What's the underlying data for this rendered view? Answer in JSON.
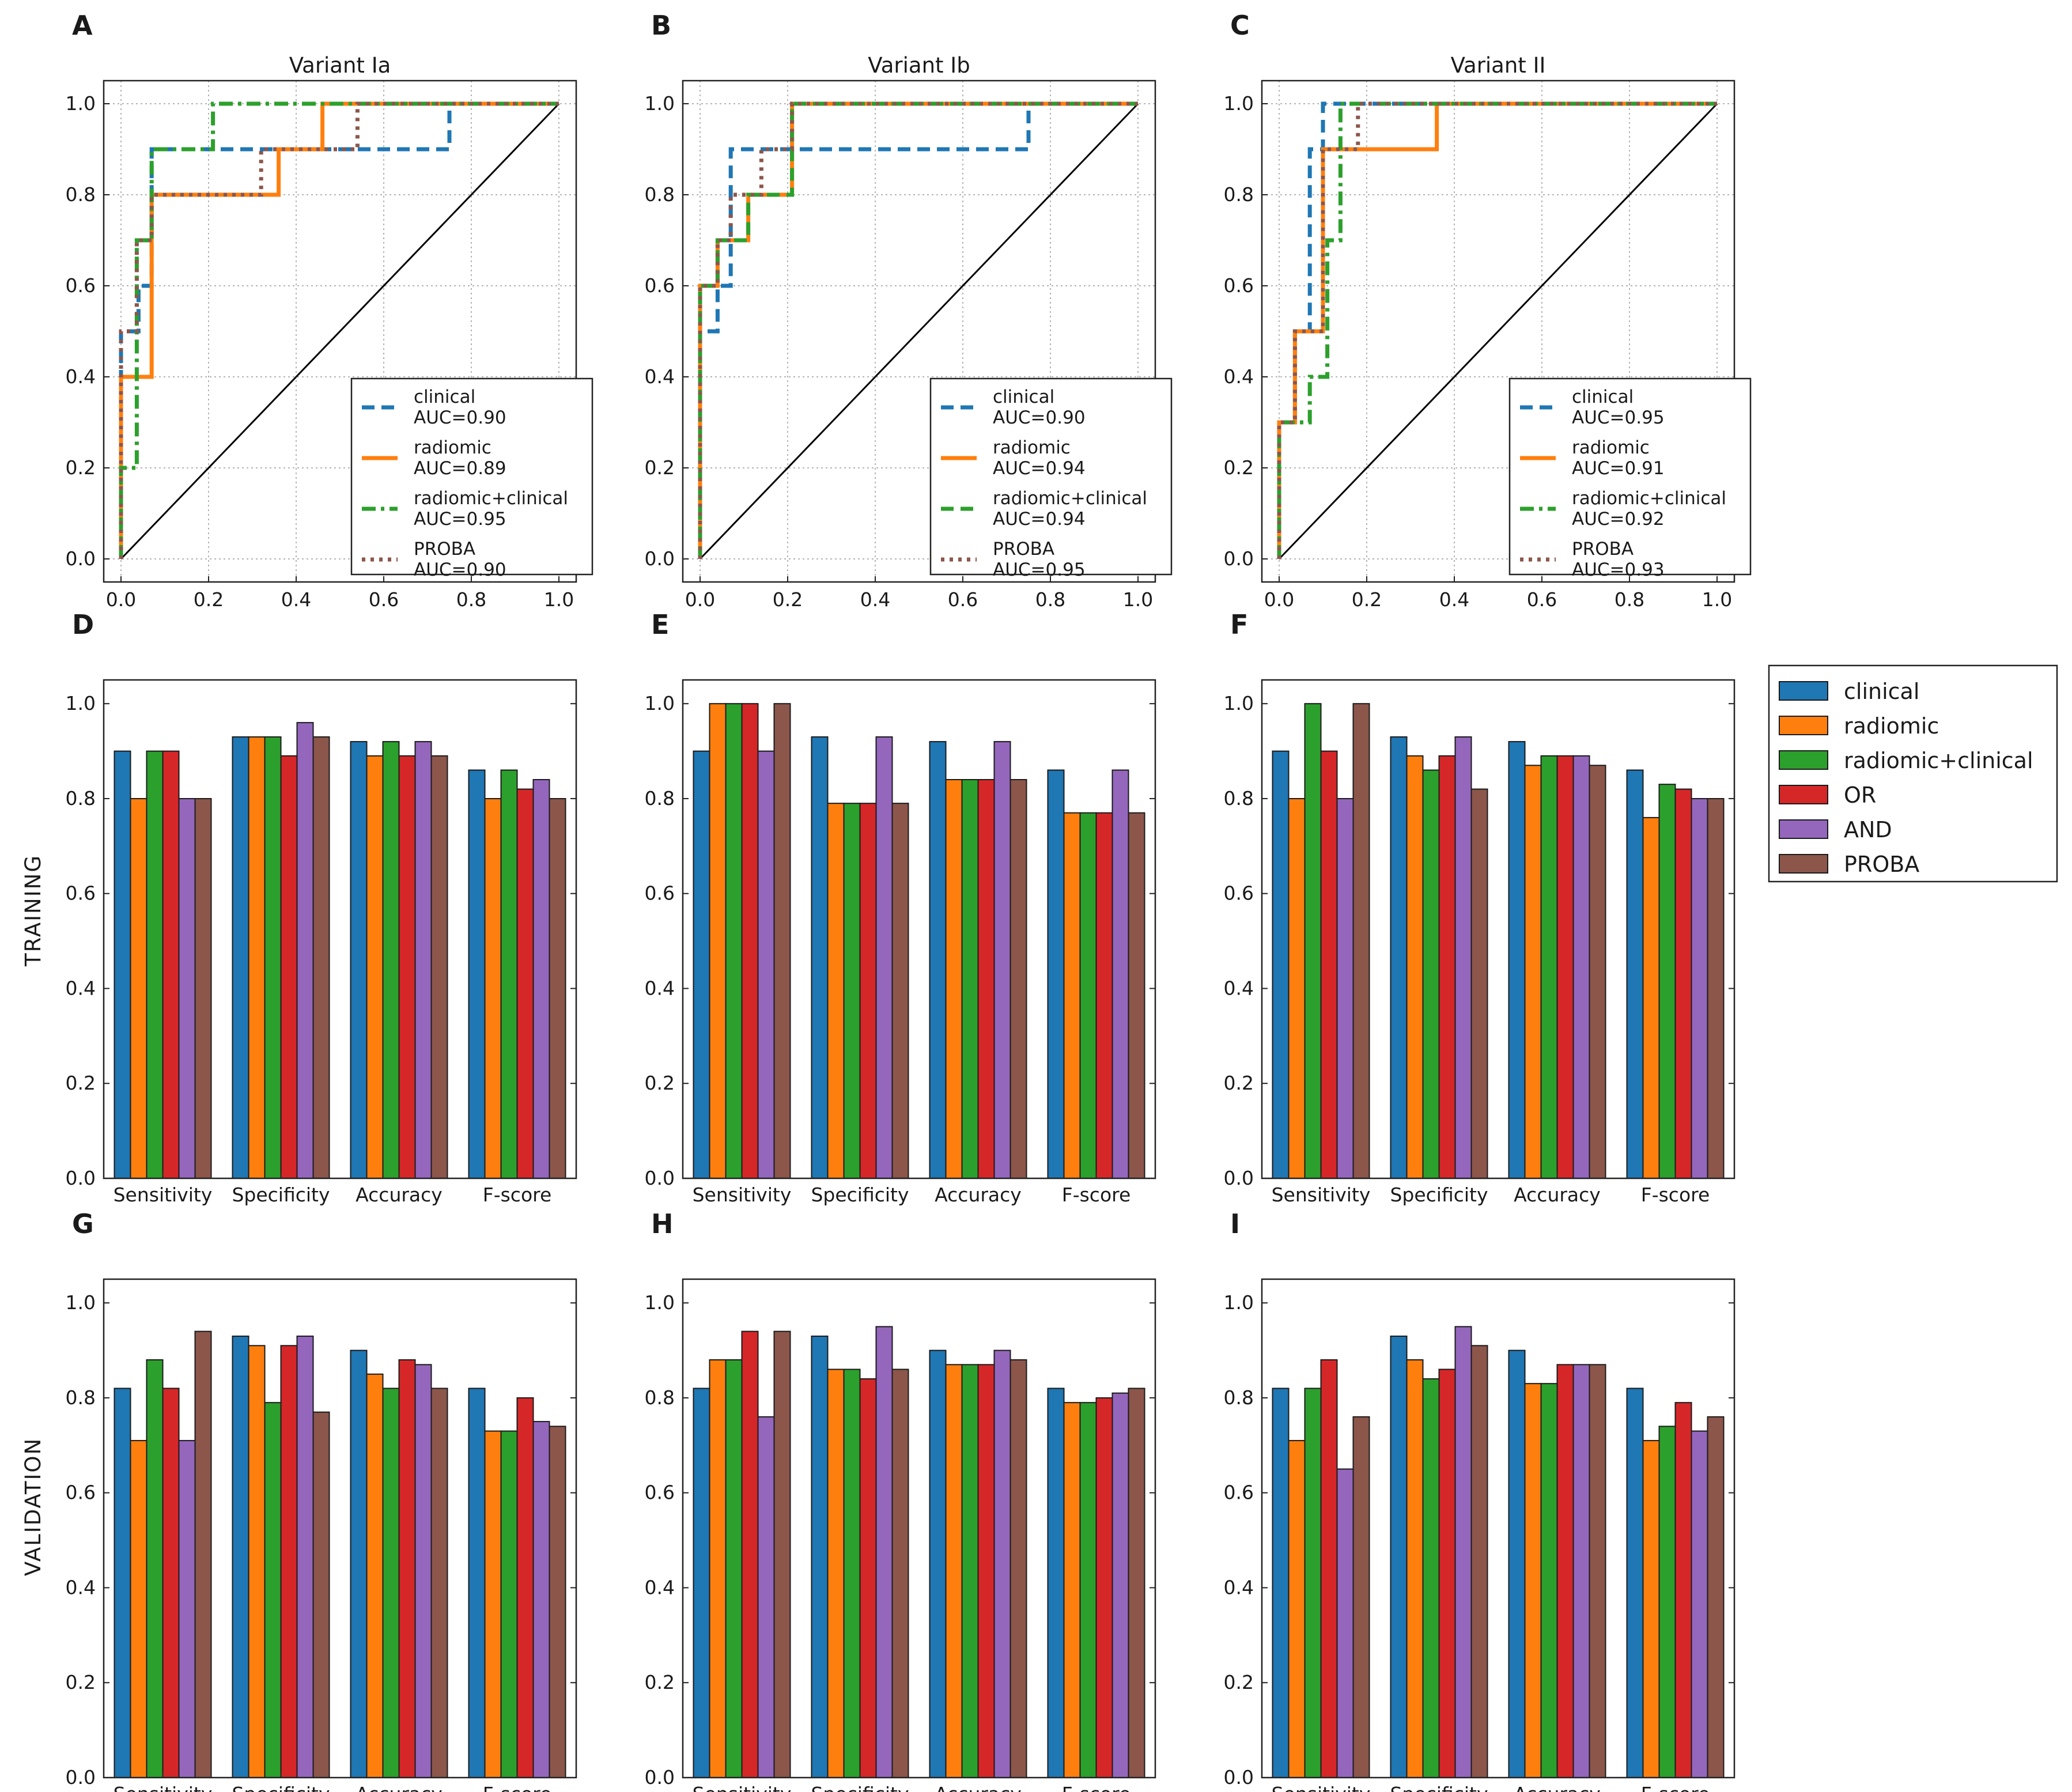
{
  "colors": {
    "clinical": "#1f77b4",
    "radiomic": "#ff7f0e",
    "radiomic+clinical": "#2ca02c",
    "OR": "#d62728",
    "AND": "#9467bd",
    "PROBA": "#8c564b",
    "chance": "#000000"
  },
  "row_labels": {
    "training": "TRAINING",
    "validation": "VALIDATION"
  },
  "bar_legend": [
    "clinical",
    "radiomic",
    "radiomic+clinical",
    "OR",
    "AND",
    "PROBA"
  ],
  "chart_data": [
    {
      "panel": "A",
      "type": "line",
      "title": "Variant Ia",
      "xlabel": "",
      "ylabel": "",
      "xlim": [
        0,
        1
      ],
      "ylim": [
        0,
        1
      ],
      "grid": true,
      "ticks": [
        "0.0",
        "0.2",
        "0.4",
        "0.6",
        "0.8",
        "1.0"
      ],
      "legend_position": "lower-right",
      "series": [
        {
          "name": "clinical",
          "label": "clinical",
          "auc_label": "AUC=0.90",
          "style": "dashed",
          "x": [
            0,
            0,
            0.04,
            0.04,
            0.07,
            0.07,
            0.75,
            0.75,
            1
          ],
          "y": [
            0,
            0.5,
            0.5,
            0.6,
            0.6,
            0.9,
            0.9,
            1,
            1
          ]
        },
        {
          "name": "radiomic",
          "label": "radiomic",
          "auc_label": "AUC=0.89",
          "style": "solid",
          "x": [
            0,
            0,
            0.07,
            0.07,
            0.36,
            0.36,
            0.46,
            0.46,
            1
          ],
          "y": [
            0,
            0.4,
            0.4,
            0.8,
            0.8,
            0.9,
            0.9,
            1,
            1
          ]
        },
        {
          "name": "radiomic+clinical",
          "label": "radiomic+clinical",
          "auc_label": "AUC=0.95",
          "style": "dashdot",
          "x": [
            0,
            0,
            0.036,
            0.036,
            0.07,
            0.07,
            0.21,
            0.21,
            1
          ],
          "y": [
            0,
            0.2,
            0.2,
            0.7,
            0.7,
            0.9,
            0.9,
            1,
            1
          ]
        },
        {
          "name": "PROBA",
          "label": "PROBA",
          "auc_label": "AUC=0.90",
          "style": "dotted",
          "x": [
            0,
            0,
            0.036,
            0.036,
            0.07,
            0.07,
            0.32,
            0.32,
            0.54,
            0.54,
            1
          ],
          "y": [
            0,
            0.5,
            0.5,
            0.7,
            0.7,
            0.8,
            0.8,
            0.9,
            0.9,
            1,
            1
          ]
        }
      ]
    },
    {
      "panel": "B",
      "type": "line",
      "title": "Variant Ib",
      "xlabel": "",
      "ylabel": "",
      "xlim": [
        0,
        1
      ],
      "ylim": [
        0,
        1
      ],
      "grid": true,
      "ticks": [
        "0.0",
        "0.2",
        "0.4",
        "0.6",
        "0.8",
        "1.0"
      ],
      "legend_position": "lower-right",
      "series": [
        {
          "name": "clinical",
          "label": "clinical",
          "auc_label": "AUC=0.90",
          "style": "dashed",
          "x": [
            0,
            0,
            0.04,
            0.04,
            0.07,
            0.07,
            0.75,
            0.75,
            1
          ],
          "y": [
            0,
            0.5,
            0.5,
            0.6,
            0.6,
            0.9,
            0.9,
            1,
            1
          ]
        },
        {
          "name": "radiomic",
          "label": "radiomic",
          "auc_label": "AUC=0.94",
          "style": "solid",
          "x": [
            0,
            0,
            0.04,
            0.04,
            0.11,
            0.11,
            0.21,
            0.21,
            1
          ],
          "y": [
            0,
            0.6,
            0.6,
            0.7,
            0.7,
            0.8,
            0.8,
            1,
            1
          ]
        },
        {
          "name": "radiomic+clinical",
          "label": "radiomic+clinical",
          "auc_label": "AUC=0.94",
          "style": "dashed",
          "x": [
            0,
            0,
            0.04,
            0.04,
            0.11,
            0.11,
            0.21,
            0.21,
            1
          ],
          "y": [
            0,
            0.6,
            0.6,
            0.7,
            0.7,
            0.8,
            0.8,
            1,
            1
          ]
        },
        {
          "name": "PROBA",
          "label": "PROBA",
          "auc_label": "AUC=0.95",
          "style": "dotted",
          "x": [
            0,
            0,
            0.04,
            0.04,
            0.07,
            0.07,
            0.14,
            0.14,
            0.21,
            0.21,
            1
          ],
          "y": [
            0,
            0.6,
            0.6,
            0.7,
            0.7,
            0.8,
            0.8,
            0.9,
            0.9,
            1,
            1
          ]
        }
      ]
    },
    {
      "panel": "C",
      "type": "line",
      "title": "Variant II",
      "xlabel": "",
      "ylabel": "",
      "xlim": [
        0,
        1
      ],
      "ylim": [
        0,
        1
      ],
      "grid": true,
      "ticks": [
        "0.0",
        "0.2",
        "0.4",
        "0.6",
        "0.8",
        "1.0"
      ],
      "legend_position": "lower-right",
      "series": [
        {
          "name": "clinical",
          "label": "clinical",
          "auc_label": "AUC=0.95",
          "style": "dashed",
          "x": [
            0,
            0,
            0.036,
            0.036,
            0.07,
            0.07,
            0.1,
            0.1,
            0.18,
            0.18,
            1
          ],
          "y": [
            0,
            0.3,
            0.3,
            0.5,
            0.5,
            0.9,
            0.9,
            1,
            1,
            1,
            1
          ]
        },
        {
          "name": "radiomic",
          "label": "radiomic",
          "auc_label": "AUC=0.91",
          "style": "solid",
          "x": [
            0,
            0,
            0.036,
            0.036,
            0.1,
            0.1,
            0.36,
            0.36,
            1
          ],
          "y": [
            0,
            0.3,
            0.3,
            0.5,
            0.5,
            0.9,
            0.9,
            1,
            1
          ]
        },
        {
          "name": "radiomic+clinical",
          "label": "radiomic+clinical",
          "auc_label": "AUC=0.92",
          "style": "dashdot",
          "x": [
            0,
            0,
            0.07,
            0.07,
            0.11,
            0.11,
            0.14,
            0.14,
            1
          ],
          "y": [
            0,
            0.3,
            0.3,
            0.4,
            0.4,
            0.7,
            0.7,
            1,
            1
          ]
        },
        {
          "name": "PROBA",
          "label": "PROBA",
          "auc_label": "AUC=0.93",
          "style": "dotted",
          "x": [
            0,
            0,
            0.036,
            0.036,
            0.1,
            0.1,
            0.18,
            0.18,
            1
          ],
          "y": [
            0,
            0.3,
            0.3,
            0.5,
            0.5,
            0.9,
            0.9,
            1,
            1
          ]
        }
      ]
    },
    {
      "panel": "D",
      "type": "bar",
      "row": "training",
      "title": "",
      "ylim": [
        0,
        1.05
      ],
      "grid": false,
      "yticks": [
        "0.0",
        "0.2",
        "0.4",
        "0.6",
        "0.8",
        "1.0"
      ],
      "categories": [
        "Sensitivity",
        "Specificity",
        "Accuracy",
        "F-score"
      ],
      "series": [
        {
          "name": "clinical",
          "values": [
            0.9,
            0.93,
            0.92,
            0.86
          ]
        },
        {
          "name": "radiomic",
          "values": [
            0.8,
            0.93,
            0.89,
            0.8
          ]
        },
        {
          "name": "radiomic+clinical",
          "values": [
            0.9,
            0.93,
            0.92,
            0.86
          ]
        },
        {
          "name": "OR",
          "values": [
            0.9,
            0.89,
            0.89,
            0.82
          ]
        },
        {
          "name": "AND",
          "values": [
            0.8,
            0.96,
            0.92,
            0.84
          ]
        },
        {
          "name": "PROBA",
          "values": [
            0.8,
            0.93,
            0.89,
            0.8
          ]
        }
      ]
    },
    {
      "panel": "E",
      "type": "bar",
      "row": "training",
      "title": "",
      "ylim": [
        0,
        1.05
      ],
      "grid": false,
      "yticks": [
        "0.0",
        "0.2",
        "0.4",
        "0.6",
        "0.8",
        "1.0"
      ],
      "categories": [
        "Sensitivity",
        "Specificity",
        "Accuracy",
        "F-score"
      ],
      "series": [
        {
          "name": "clinical",
          "values": [
            0.9,
            0.93,
            0.92,
            0.86
          ]
        },
        {
          "name": "radiomic",
          "values": [
            1.0,
            0.79,
            0.84,
            0.77
          ]
        },
        {
          "name": "radiomic+clinical",
          "values": [
            1.0,
            0.79,
            0.84,
            0.77
          ]
        },
        {
          "name": "OR",
          "values": [
            1.0,
            0.79,
            0.84,
            0.77
          ]
        },
        {
          "name": "AND",
          "values": [
            0.9,
            0.93,
            0.92,
            0.86
          ]
        },
        {
          "name": "PROBA",
          "values": [
            1.0,
            0.79,
            0.84,
            0.77
          ]
        }
      ]
    },
    {
      "panel": "F",
      "type": "bar",
      "row": "training",
      "title": "",
      "ylim": [
        0,
        1.05
      ],
      "grid": false,
      "yticks": [
        "0.0",
        "0.2",
        "0.4",
        "0.6",
        "0.8",
        "1.0"
      ],
      "categories": [
        "Sensitivity",
        "Specificity",
        "Accuracy",
        "F-score"
      ],
      "series": [
        {
          "name": "clinical",
          "values": [
            0.9,
            0.93,
            0.92,
            0.86
          ]
        },
        {
          "name": "radiomic",
          "values": [
            0.8,
            0.89,
            0.87,
            0.76
          ]
        },
        {
          "name": "radiomic+clinical",
          "values": [
            1.0,
            0.86,
            0.89,
            0.83
          ]
        },
        {
          "name": "OR",
          "values": [
            0.9,
            0.89,
            0.89,
            0.82
          ]
        },
        {
          "name": "AND",
          "values": [
            0.8,
            0.93,
            0.89,
            0.8
          ]
        },
        {
          "name": "PROBA",
          "values": [
            1.0,
            0.82,
            0.87,
            0.8
          ]
        }
      ]
    },
    {
      "panel": "G",
      "type": "bar",
      "row": "validation",
      "title": "",
      "ylim": [
        0,
        1.05
      ],
      "grid": false,
      "yticks": [
        "0.0",
        "0.2",
        "0.4",
        "0.6",
        "0.8",
        "1.0"
      ],
      "categories": [
        "Sensitivity",
        "Specificity",
        "Accuracy",
        "F-score"
      ],
      "series": [
        {
          "name": "clinical",
          "values": [
            0.82,
            0.93,
            0.9,
            0.82
          ]
        },
        {
          "name": "radiomic",
          "values": [
            0.71,
            0.91,
            0.85,
            0.73
          ]
        },
        {
          "name": "radiomic+clinical",
          "values": [
            0.88,
            0.79,
            0.82,
            0.73
          ]
        },
        {
          "name": "OR",
          "values": [
            0.82,
            0.91,
            0.88,
            0.8
          ]
        },
        {
          "name": "AND",
          "values": [
            0.71,
            0.93,
            0.87,
            0.75
          ]
        },
        {
          "name": "PROBA",
          "values": [
            0.94,
            0.77,
            0.82,
            0.74
          ]
        }
      ]
    },
    {
      "panel": "H",
      "type": "bar",
      "row": "validation",
      "title": "",
      "ylim": [
        0,
        1.05
      ],
      "grid": false,
      "yticks": [
        "0.0",
        "0.2",
        "0.4",
        "0.6",
        "0.8",
        "1.0"
      ],
      "categories": [
        "Sensitivity",
        "Specificity",
        "Accuracy",
        "F-score"
      ],
      "series": [
        {
          "name": "clinical",
          "values": [
            0.82,
            0.93,
            0.9,
            0.82
          ]
        },
        {
          "name": "radiomic",
          "values": [
            0.88,
            0.86,
            0.87,
            0.79
          ]
        },
        {
          "name": "radiomic+clinical",
          "values": [
            0.88,
            0.86,
            0.87,
            0.79
          ]
        },
        {
          "name": "OR",
          "values": [
            0.94,
            0.84,
            0.87,
            0.8
          ]
        },
        {
          "name": "AND",
          "values": [
            0.76,
            0.95,
            0.9,
            0.81
          ]
        },
        {
          "name": "PROBA",
          "values": [
            0.94,
            0.86,
            0.88,
            0.82
          ]
        }
      ]
    },
    {
      "panel": "I",
      "type": "bar",
      "row": "validation",
      "title": "",
      "ylim": [
        0,
        1.05
      ],
      "grid": false,
      "yticks": [
        "0.0",
        "0.2",
        "0.4",
        "0.6",
        "0.8",
        "1.0"
      ],
      "categories": [
        "Sensitivity",
        "Specificity",
        "Accuracy",
        "F-score"
      ],
      "series": [
        {
          "name": "clinical",
          "values": [
            0.82,
            0.93,
            0.9,
            0.82
          ]
        },
        {
          "name": "radiomic",
          "values": [
            0.71,
            0.88,
            0.83,
            0.71
          ]
        },
        {
          "name": "radiomic+clinical",
          "values": [
            0.82,
            0.84,
            0.83,
            0.74
          ]
        },
        {
          "name": "OR",
          "values": [
            0.88,
            0.86,
            0.87,
            0.79
          ]
        },
        {
          "name": "AND",
          "values": [
            0.65,
            0.95,
            0.87,
            0.73
          ]
        },
        {
          "name": "PROBA",
          "values": [
            0.76,
            0.91,
            0.87,
            0.76
          ]
        }
      ]
    }
  ]
}
